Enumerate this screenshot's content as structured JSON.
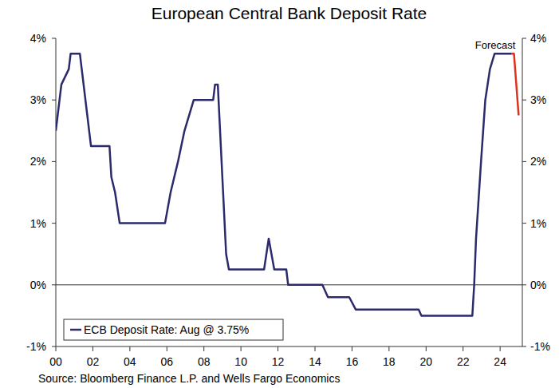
{
  "chart_data": {
    "type": "line",
    "title": "European Central Bank Deposit Rate",
    "annotation": "Forecast",
    "source": "Source: Bloomberg Finance L.P. and Wells Fargo Economics",
    "legend": "bottom-left",
    "grid": false,
    "xlim": [
      0,
      25.2
    ],
    "xticks": [
      {
        "value": 0,
        "label": "00"
      },
      {
        "value": 2,
        "label": "02"
      },
      {
        "value": 4,
        "label": "04"
      },
      {
        "value": 6,
        "label": "06"
      },
      {
        "value": 8,
        "label": "08"
      },
      {
        "value": 10,
        "label": "10"
      },
      {
        "value": 12,
        "label": "12"
      },
      {
        "value": 14,
        "label": "14"
      },
      {
        "value": 16,
        "label": "16"
      },
      {
        "value": 18,
        "label": "18"
      },
      {
        "value": 20,
        "label": "20"
      },
      {
        "value": 22,
        "label": "22"
      },
      {
        "value": 24,
        "label": "24"
      }
    ],
    "ylim": [
      -1,
      4
    ],
    "yticks": [
      {
        "value": 4,
        "label": "4%"
      },
      {
        "value": 3,
        "label": "3%"
      },
      {
        "value": 2,
        "label": "2%"
      },
      {
        "value": 1,
        "label": "1%"
      },
      {
        "value": 0,
        "label": "0%"
      },
      {
        "value": -1,
        "label": "-1%"
      }
    ],
    "y2lim": [
      -1,
      4
    ],
    "y2ticks": [
      {
        "value": 4,
        "label": "4%"
      },
      {
        "value": 3,
        "label": "3%"
      },
      {
        "value": 2,
        "label": "2%"
      },
      {
        "value": 1,
        "label": "1%"
      },
      {
        "value": 0,
        "label": "0%"
      },
      {
        "value": -1,
        "label": "-1%"
      }
    ],
    "series": [
      {
        "name": "ECB Deposit Rate: Aug @ 3.75%",
        "color": "#2b2b6b",
        "x": [
          0,
          0.3,
          0.7,
          0.8,
          1.3,
          1.4,
          1.7,
          1.9,
          2.9,
          3.0,
          3.2,
          3.45,
          5.9,
          6.2,
          6.6,
          6.95,
          7.45,
          8.5,
          8.6,
          8.75,
          9.2,
          9.35,
          11.25,
          11.5,
          11.8,
          12.45,
          12.55,
          14.4,
          14.7,
          15.85,
          16.2,
          19.6,
          19.75,
          22.5,
          22.6,
          22.7,
          22.97,
          23.2,
          23.45,
          23.7,
          24.6
        ],
        "values": [
          2.5,
          3.25,
          3.5,
          3.75,
          3.75,
          3.5,
          2.75,
          2.25,
          2.25,
          1.75,
          1.5,
          1.0,
          1.0,
          1.5,
          2.0,
          2.5,
          3.0,
          3.0,
          3.25,
          3.25,
          0.5,
          0.25,
          0.25,
          0.75,
          0.25,
          0.25,
          0.0,
          0.0,
          -0.2,
          -0.2,
          -0.4,
          -0.4,
          -0.5,
          -0.5,
          0.0,
          0.75,
          2.0,
          3.0,
          3.5,
          3.75,
          3.75
        ]
      },
      {
        "color": "#e0301e",
        "x": [
          24.6,
          24.75,
          25.0
        ],
        "values": [
          3.75,
          3.75,
          2.75
        ]
      }
    ]
  }
}
